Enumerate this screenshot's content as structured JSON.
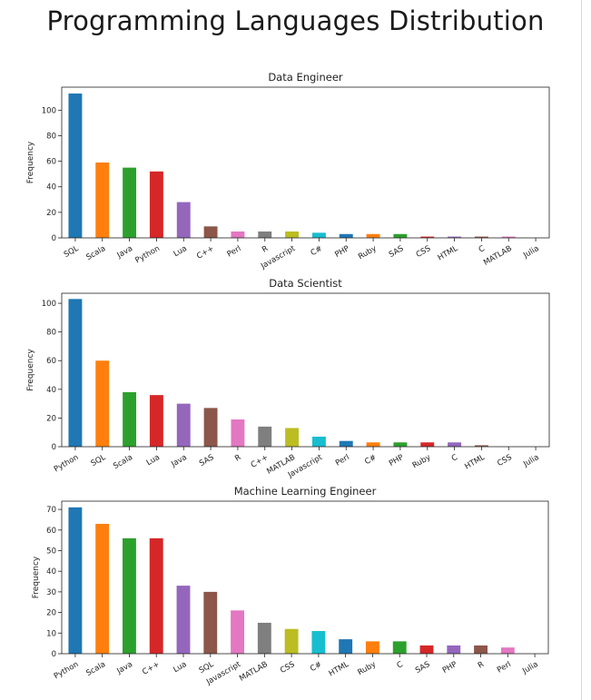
{
  "title": "Programming Languages Distribution",
  "colors": [
    "#1f77b4",
    "#ff7f0e",
    "#2ca02c",
    "#d62728",
    "#9467bd",
    "#8c564b",
    "#e377c2",
    "#7f7f7f",
    "#bcbd22",
    "#17becf"
  ],
  "chart_data": [
    {
      "type": "bar",
      "title": "Data Engineer",
      "ylabel": "Frequency",
      "xlabel": "",
      "ylim": [
        0,
        118
      ],
      "yticks": [
        0,
        20,
        40,
        60,
        80,
        100
      ],
      "grid": false,
      "categories": [
        "SQL",
        "Scala",
        "Java",
        "Python",
        "Lua",
        "C++",
        "Perl",
        "R",
        "Javascript",
        "C#",
        "PHP",
        "Ruby",
        "SAS",
        "CSS",
        "HTML",
        "C",
        "MATLAB",
        "Julia"
      ],
      "values": [
        113,
        59,
        55,
        52,
        28,
        9,
        5,
        5,
        5,
        4,
        3,
        3,
        3,
        1,
        1,
        1,
        1,
        0
      ]
    },
    {
      "type": "bar",
      "title": "Data Scientist",
      "ylabel": "Frequency",
      "xlabel": "",
      "ylim": [
        0,
        107
      ],
      "yticks": [
        0,
        20,
        40,
        60,
        80,
        100
      ],
      "grid": false,
      "categories": [
        "Python",
        "SQL",
        "Scala",
        "Lua",
        "Java",
        "SAS",
        "R",
        "C++",
        "MATLAB",
        "Javascript",
        "Perl",
        "C#",
        "PHP",
        "Ruby",
        "C",
        "HTML",
        "CSS",
        "Julia"
      ],
      "values": [
        103,
        60,
        38,
        36,
        30,
        27,
        19,
        14,
        13,
        7,
        4,
        3,
        3,
        3,
        3,
        1,
        0,
        0
      ]
    },
    {
      "type": "bar",
      "title": "Machine Learning Engineer",
      "ylabel": "Frequency",
      "xlabel": "",
      "ylim": [
        0,
        74
      ],
      "yticks": [
        0,
        10,
        20,
        30,
        40,
        50,
        60,
        70
      ],
      "grid": false,
      "categories": [
        "Python",
        "Scala",
        "Java",
        "C++",
        "Lua",
        "SQL",
        "Javascript",
        "MATLAB",
        "CSS",
        "C#",
        "HTML",
        "Ruby",
        "C",
        "SAS",
        "PHP",
        "R",
        "Perl",
        "Julia"
      ],
      "values": [
        71,
        63,
        56,
        56,
        33,
        30,
        21,
        15,
        12,
        11,
        7,
        6,
        6,
        4,
        4,
        4,
        3,
        0
      ]
    }
  ]
}
